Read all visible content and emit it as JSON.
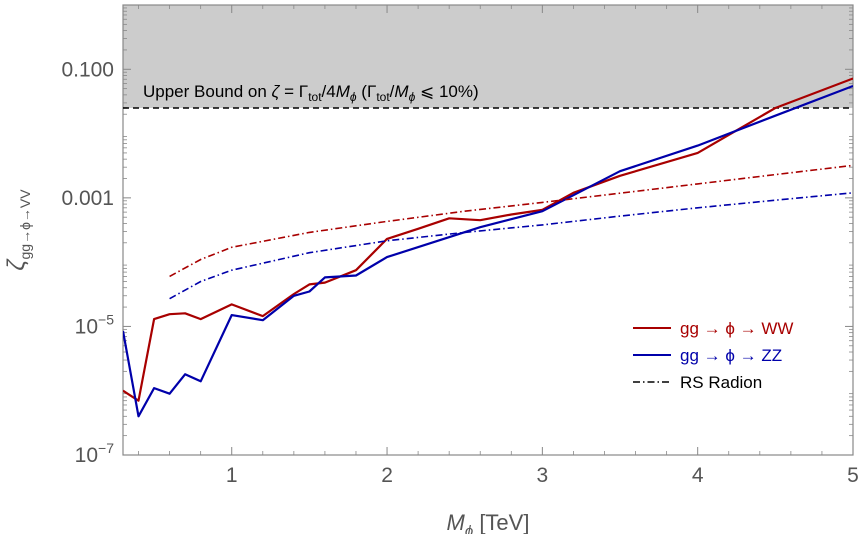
{
  "chart_data": {
    "type": "line",
    "title": "",
    "xlabel": "M_ϕ [TeV]",
    "ylabel": "ζ_gg→ϕ→VV",
    "xlim": [
      0.3,
      5
    ],
    "ylim": [
      1e-07,
      1.0
    ],
    "y_scale": "log",
    "x_ticks": [
      1,
      2,
      3,
      4,
      5
    ],
    "x_tick_labels": [
      "1",
      "2",
      "3",
      "4",
      "5"
    ],
    "y_ticks": [
      1e-07,
      1e-05,
      0.001,
      0.1
    ],
    "y_tick_labels": [
      "10−7",
      "10−5",
      "0.001",
      "0.100"
    ],
    "grid": false,
    "legend_position": "bottom-right",
    "upper_bound": {
      "y": 0.025,
      "label": "Upper Bound on ζ = Γtot/4Mϕ   (Γtot/Mϕ ⩽ 10%)",
      "shade_color": "#cccccc"
    },
    "series": [
      {
        "name": "gg → ϕ → WW",
        "color": "#a80000",
        "style": "solid",
        "x": [
          0.3,
          0.4,
          0.5,
          0.6,
          0.7,
          0.8,
          1.0,
          1.2,
          1.4,
          1.5,
          1.6,
          1.8,
          2.0,
          2.2,
          2.4,
          2.6,
          2.8,
          3.0,
          3.2,
          3.5,
          4.0,
          4.5,
          5.0
        ],
        "y": [
          1e-06,
          7e-07,
          1.3e-05,
          1.55e-05,
          1.6e-05,
          1.3e-05,
          2.2e-05,
          1.45e-05,
          3.2e-05,
          4.5e-05,
          4.8e-05,
          7.5e-05,
          0.00023,
          0.00033,
          0.00048,
          0.00045,
          0.00055,
          0.00065,
          0.0012,
          0.0022,
          0.005,
          0.025,
          0.072
        ]
      },
      {
        "name": "gg → ϕ → ZZ",
        "color": "#0000aa",
        "style": "solid",
        "x": [
          0.3,
          0.4,
          0.5,
          0.6,
          0.7,
          0.8,
          1.0,
          1.2,
          1.4,
          1.5,
          1.6,
          1.8,
          2.0,
          2.6,
          3.0,
          3.5,
          4.0,
          4.5,
          5.0
        ],
        "y": [
          8.5e-06,
          4e-07,
          1.1e-06,
          9e-07,
          1.8e-06,
          1.4e-06,
          1.5e-05,
          1.25e-05,
          3e-05,
          3.5e-05,
          5.8e-05,
          6.2e-05,
          0.00012,
          0.00035,
          0.00062,
          0.0026,
          0.0065,
          0.019,
          0.055
        ]
      },
      {
        "name": "RS Radion",
        "color": "#a80000",
        "style": "dashdot",
        "x": [
          0.6,
          0.8,
          1.0,
          1.5,
          2.0,
          2.5,
          3.0,
          3.5,
          4.0,
          4.5,
          5.0
        ],
        "y": [
          6e-05,
          0.00011,
          0.00017,
          0.00029,
          0.00043,
          0.00062,
          0.00085,
          0.00118,
          0.00165,
          0.0023,
          0.0032
        ]
      },
      {
        "name": "RS Radion (ZZ)",
        "color": "#0000aa",
        "style": "dashdot",
        "x": [
          0.6,
          0.8,
          1.0,
          1.5,
          2.0,
          2.5,
          3.0,
          3.5,
          4.0,
          4.5,
          5.0
        ],
        "y": [
          2.7e-05,
          5e-05,
          7.5e-05,
          0.00014,
          0.000215,
          0.00029,
          0.00038,
          0.00052,
          0.0007,
          0.00092,
          0.0012
        ]
      }
    ],
    "legend": [
      {
        "label": "gg → ϕ → WW",
        "color": "#a80000",
        "style": "solid"
      },
      {
        "label": "gg → ϕ → ZZ",
        "color": "#0000aa",
        "style": "solid"
      },
      {
        "label": "RS Radion",
        "color": "#000000",
        "style": "dashdot"
      }
    ]
  }
}
